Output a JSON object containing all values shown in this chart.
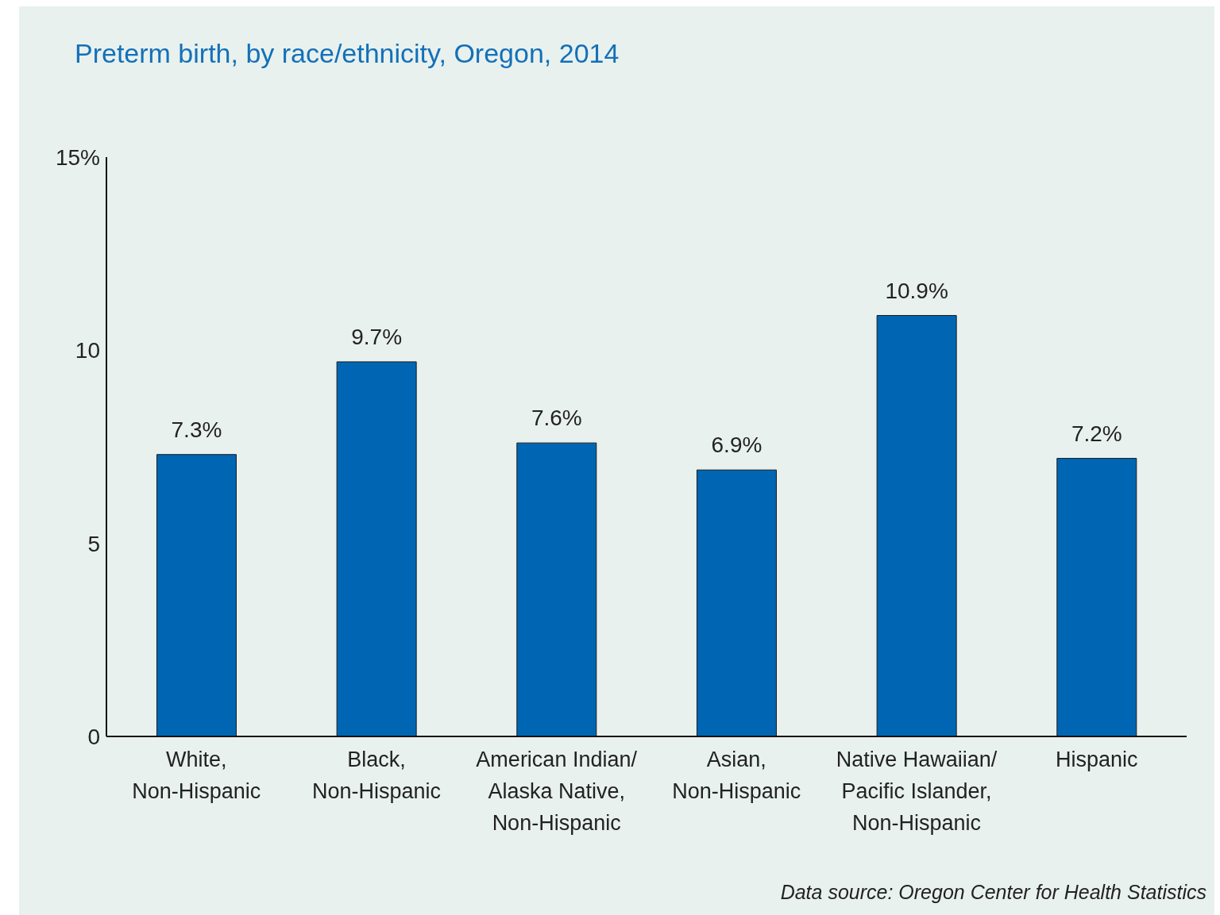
{
  "chart_data": {
    "type": "bar",
    "title": "Preterm birth, by race/ethnicity, Oregon, 2014",
    "categories": [
      "White, Non-Hispanic",
      "Black, Non-Hispanic",
      "American Indian/Alaska Native, Non-Hispanic",
      "Asian, Non-Hispanic",
      "Native Hawaiian/Pacific Islander, Non-Hispanic",
      "Hispanic"
    ],
    "values": [
      7.3,
      9.7,
      7.6,
      6.9,
      10.9,
      7.2
    ],
    "value_labels": [
      "7.3%",
      "9.7%",
      "7.6%",
      "6.9%",
      "10.9%",
      "7.2%"
    ],
    "color": "#0066b3",
    "ylim": [
      0,
      15
    ],
    "yticks": [
      0,
      5,
      10,
      {
        "value": 15,
        "label": "15%"
      }
    ],
    "annotations": [
      "Data source: Oregon Center for Health Statistics"
    ]
  }
}
